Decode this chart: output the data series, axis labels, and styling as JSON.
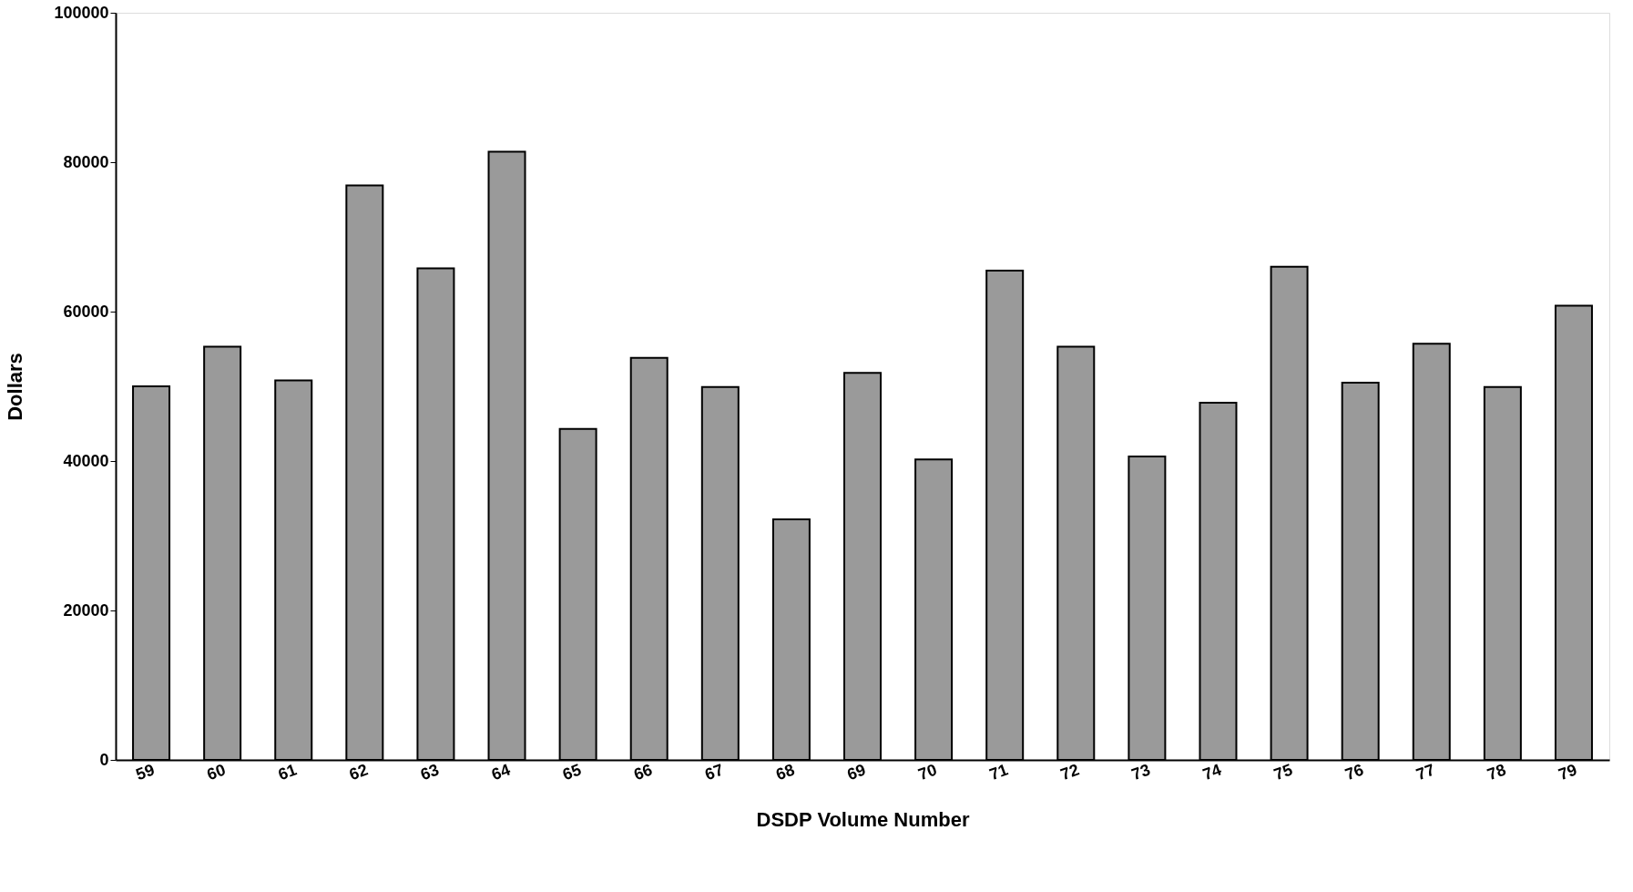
{
  "chart_data": {
    "type": "bar",
    "xlabel": "DSDP Volume Number",
    "ylabel": "Dollars",
    "categories": [
      "59",
      "60",
      "61",
      "62",
      "63",
      "64",
      "65",
      "66",
      "67",
      "68",
      "69",
      "70",
      "71",
      "72",
      "73",
      "74",
      "75",
      "76",
      "77",
      "78",
      "79"
    ],
    "values": [
      50000,
      55300,
      50800,
      76900,
      65800,
      81400,
      44300,
      53800,
      49900,
      32200,
      51800,
      40200,
      65500,
      55300,
      40600,
      47800,
      66000,
      50500,
      55700,
      49900,
      60800
    ],
    "color": "#9a9a9a",
    "ylim": [
      0,
      100000
    ],
    "yticks": [
      0,
      20000,
      40000,
      60000,
      80000,
      100000
    ],
    "grid": false
  }
}
